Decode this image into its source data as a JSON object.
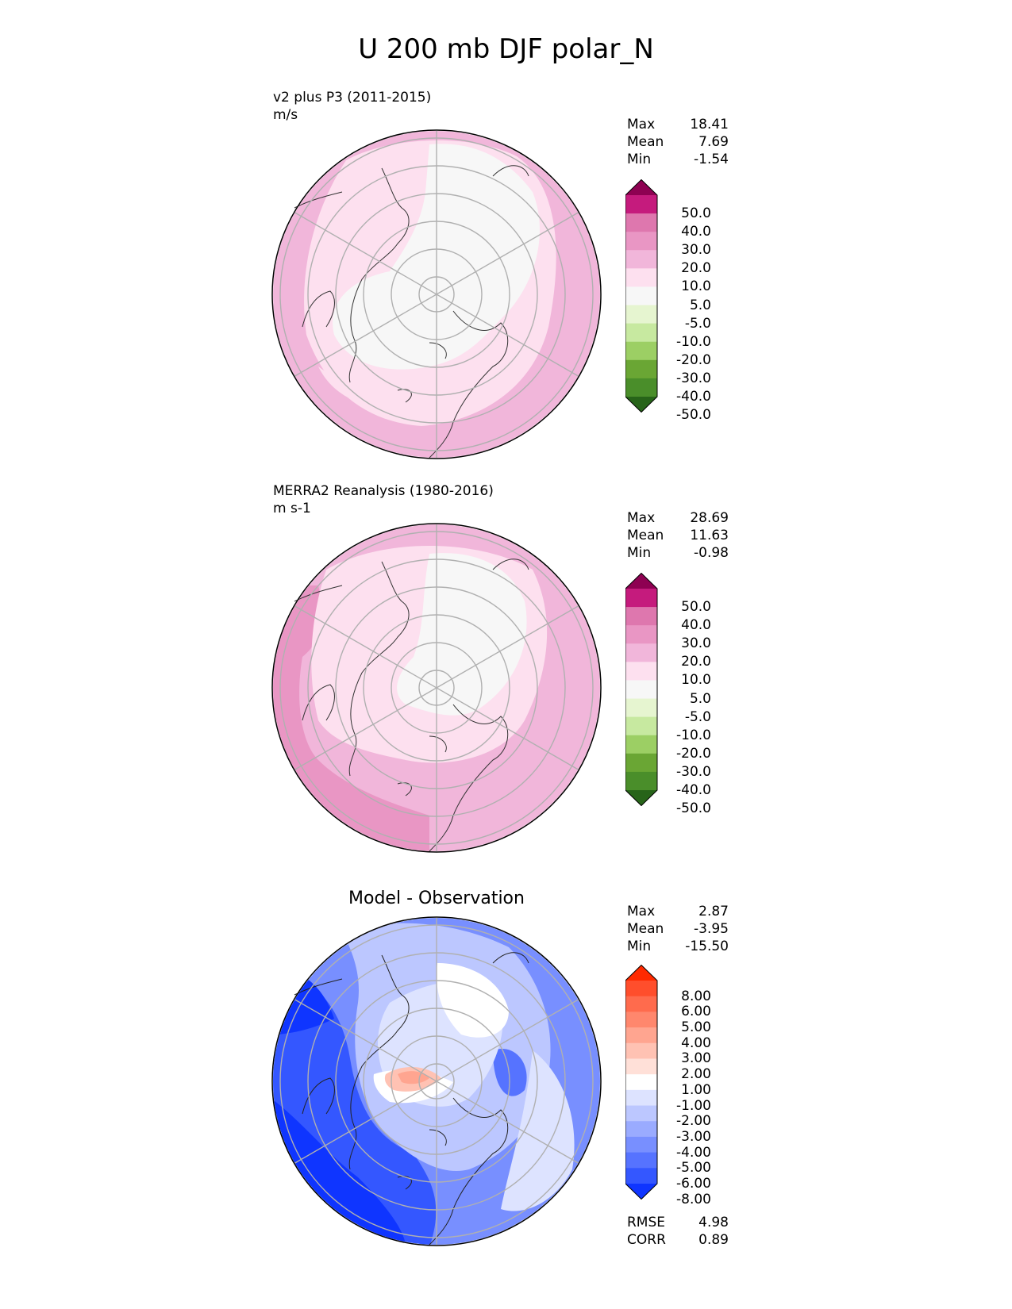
{
  "title": "U 200 mb DJF polar_N",
  "panels": [
    {
      "subtitle_line1": "v2 plus P3 (2011-2015)",
      "subtitle_line2": "m/s",
      "stats": [
        {
          "label": "Max",
          "value": "18.41"
        },
        {
          "label": "Mean",
          "value": "7.69"
        },
        {
          "label": "Min",
          "value": "-1.54"
        }
      ]
    },
    {
      "subtitle_line1": "MERRA2 Reanalysis (1980-2016)",
      "subtitle_line2": "m s-1",
      "stats": [
        {
          "label": "Max",
          "value": "28.69"
        },
        {
          "label": "Mean",
          "value": "11.63"
        },
        {
          "label": "Min",
          "value": "-0.98"
        }
      ]
    },
    {
      "title": "Model - Observation",
      "stats": [
        {
          "label": "Max",
          "value": "2.87"
        },
        {
          "label": "Mean",
          "value": "-3.95"
        },
        {
          "label": "Min",
          "value": "-15.50"
        }
      ],
      "metrics": [
        {
          "label": "RMSE",
          "value": "4.98"
        },
        {
          "label": "CORR",
          "value": "0.89"
        }
      ]
    }
  ],
  "colorbar_field": {
    "ticks": [
      "50.0",
      "40.0",
      "30.0",
      "20.0",
      "10.0",
      "5.0",
      "-5.0",
      "-10.0",
      "-20.0",
      "-30.0",
      "-40.0",
      "-50.0"
    ],
    "colors": [
      "#8e0152",
      "#c51b7d",
      "#de77ae",
      "#e996c4",
      "#f1b6da",
      "#fde0ef",
      "#f7f7f7",
      "#e6f5d0",
      "#c7e9a0",
      "#9ccf64",
      "#6aa634",
      "#4a8e2a",
      "#276419"
    ]
  },
  "colorbar_diff": {
    "ticks": [
      "8.00",
      "6.00",
      "5.00",
      "4.00",
      "3.00",
      "2.00",
      "1.00",
      "-1.00",
      "-2.00",
      "-3.00",
      "-4.00",
      "-5.00",
      "-6.00",
      "-8.00"
    ],
    "colors": [
      "#ff2a00",
      "#ff4e2c",
      "#ff6b4d",
      "#ff876d",
      "#ffa590",
      "#ffc2b3",
      "#ffe0d8",
      "#ffffff",
      "#dde3ff",
      "#bcc7ff",
      "#9aabff",
      "#788fff",
      "#5673ff",
      "#3457ff",
      "#0f35ff"
    ]
  }
}
